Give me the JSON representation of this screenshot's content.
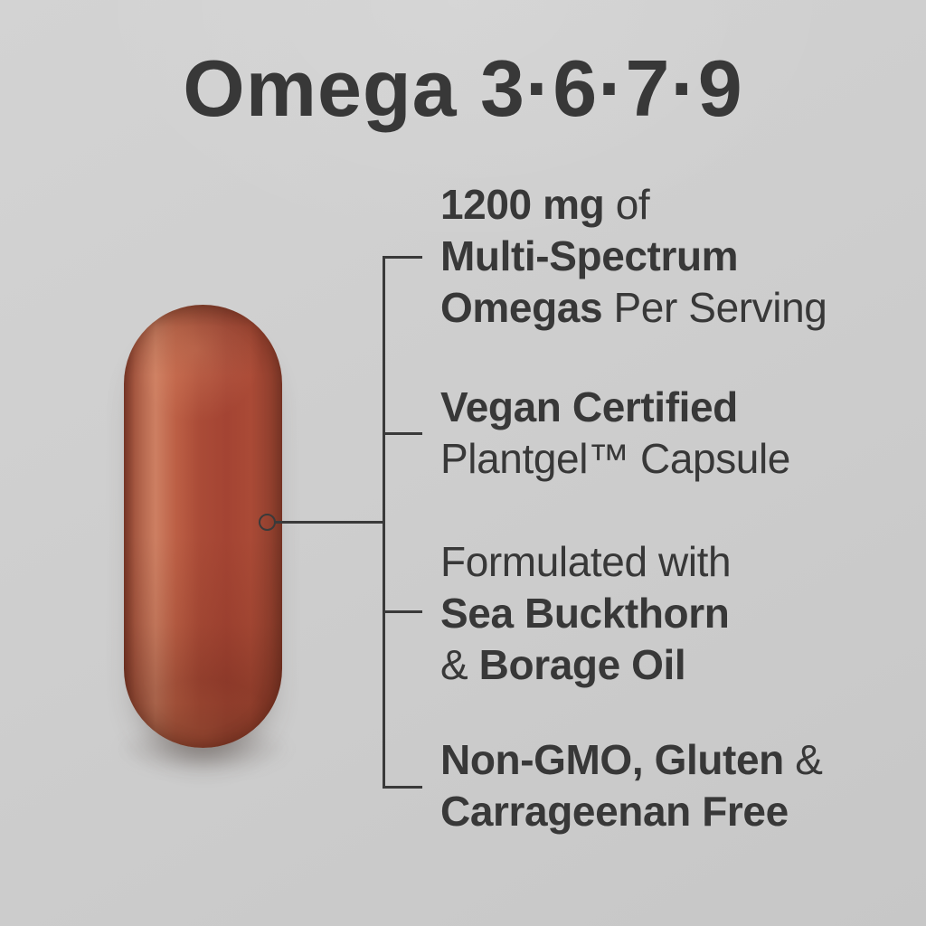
{
  "title": {
    "text": "Omega 3·6·7·9"
  },
  "colors": {
    "text": "#383838",
    "line": "#3a3a3a",
    "bg_light": "#d3d3d3",
    "bg_dark": "#c7c7c7",
    "capsule_main": "#a44433",
    "capsule_highlight": "#cd7f62",
    "capsule_rim": "#7e3a2b"
  },
  "capsule": {
    "kind": "red-softgel-capsule"
  },
  "callouts": {
    "blocks": [
      {
        "id": "serving",
        "lines": [
          [
            {
              "text": "1200 mg",
              "bold": true
            },
            {
              "text": " of",
              "bold": false
            }
          ],
          [
            {
              "text": "Multi-Spectrum",
              "bold": true
            }
          ],
          [
            {
              "text": "Omegas",
              "bold": true
            },
            {
              "text": " Per Serving",
              "bold": false
            }
          ]
        ]
      },
      {
        "id": "vegan",
        "lines": [
          [
            {
              "text": "Vegan Certified",
              "bold": true
            }
          ],
          [
            {
              "text": "Plantgel™ Capsule",
              "bold": false
            }
          ]
        ]
      },
      {
        "id": "formulated",
        "lines": [
          [
            {
              "text": "Formulated with",
              "bold": false
            }
          ],
          [
            {
              "text": "Sea Buckthorn",
              "bold": true
            }
          ],
          [
            {
              "text": "& ",
              "bold": false
            },
            {
              "text": "Borage Oil",
              "bold": true
            }
          ]
        ]
      },
      {
        "id": "free",
        "lines": [
          [
            {
              "text": "Non-GMO, Gluten",
              "bold": true
            },
            {
              "text": " &",
              "bold": false
            }
          ],
          [
            {
              "text": "Carrageenan Free",
              "bold": true
            }
          ]
        ]
      }
    ]
  }
}
